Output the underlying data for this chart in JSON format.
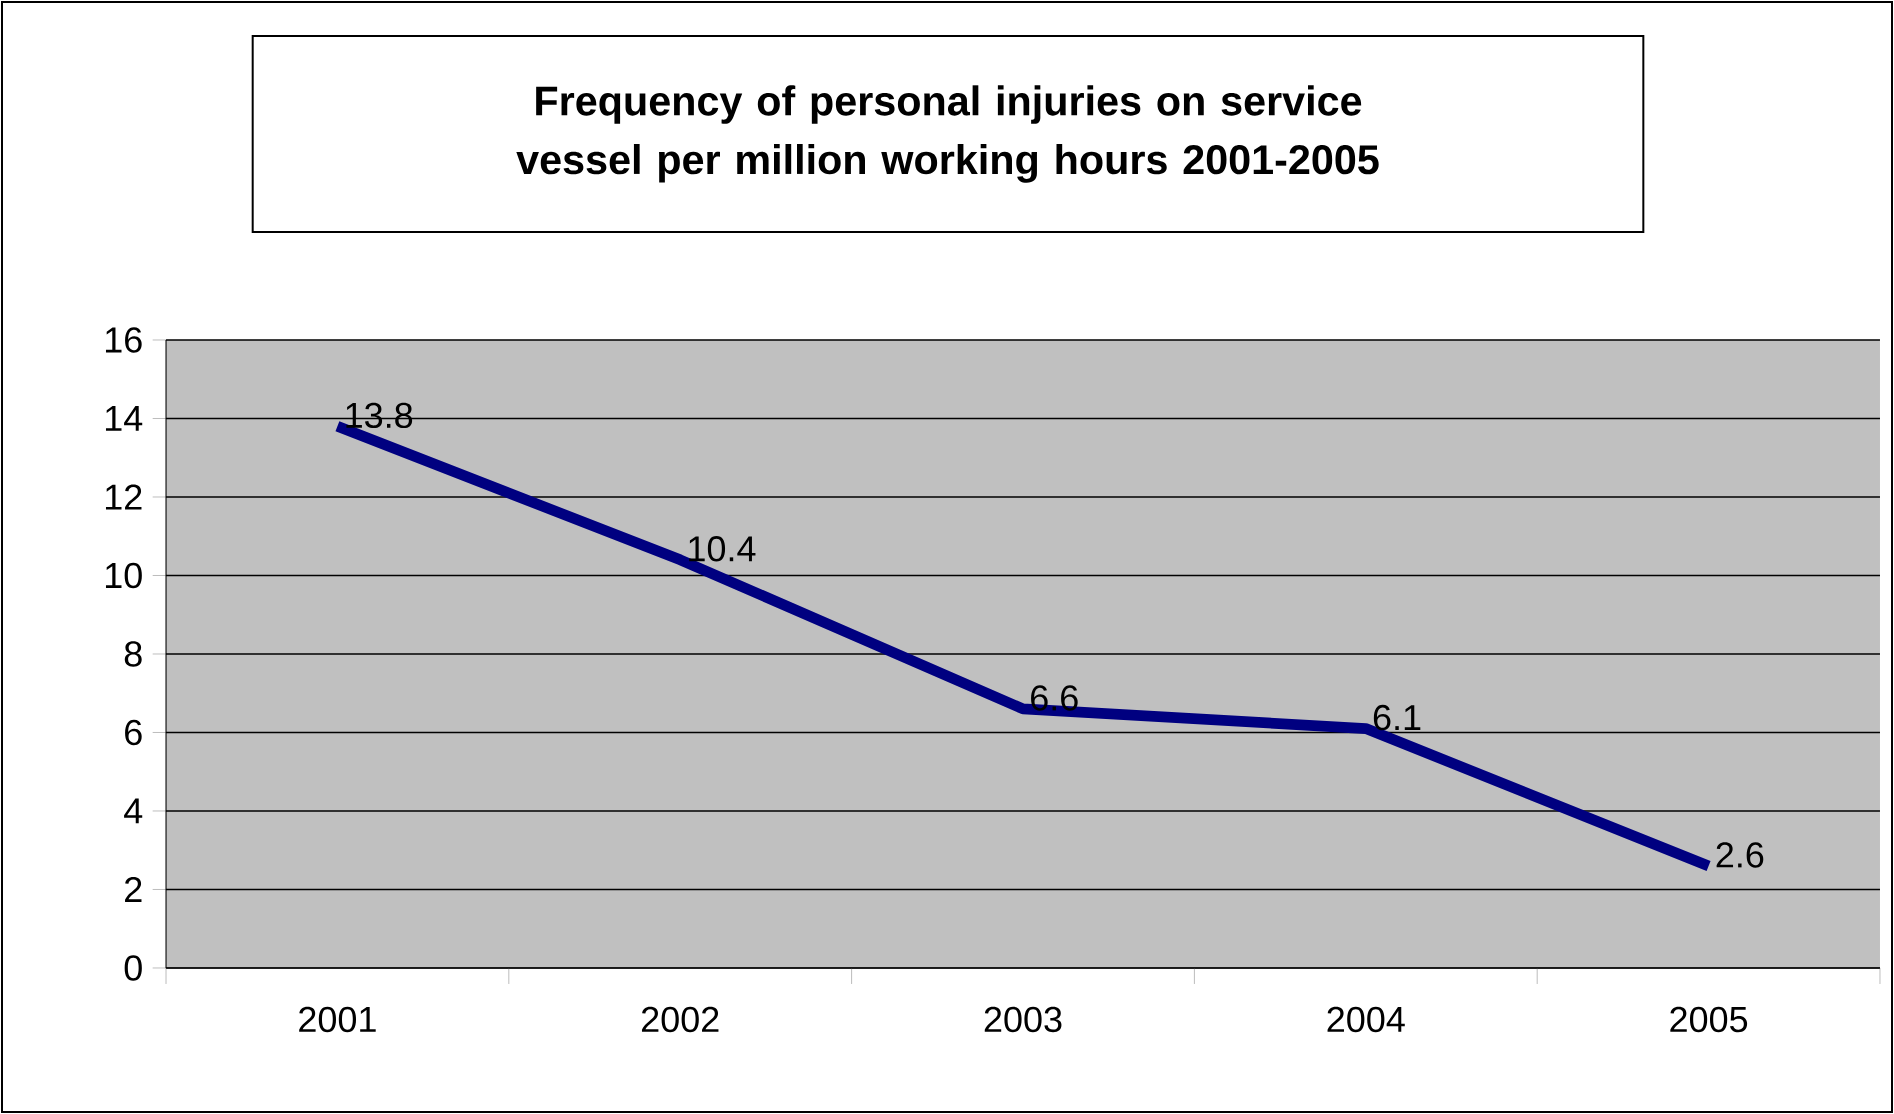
{
  "chart_data": {
    "type": "line",
    "title": "Frequency of personal injuries on service vessel per million working hours 2001-2005",
    "categories": [
      "2001",
      "2002",
      "2003",
      "2004",
      "2005"
    ],
    "values": [
      13.8,
      10.4,
      6.6,
      6.1,
      2.6
    ],
    "color": "#000080",
    "ylim": [
      0,
      16
    ],
    "yticks": [
      0,
      2,
      4,
      6,
      8,
      10,
      12,
      14,
      16
    ],
    "grid": "y",
    "data_labels": true,
    "marker": "none",
    "line_style": "solid"
  }
}
